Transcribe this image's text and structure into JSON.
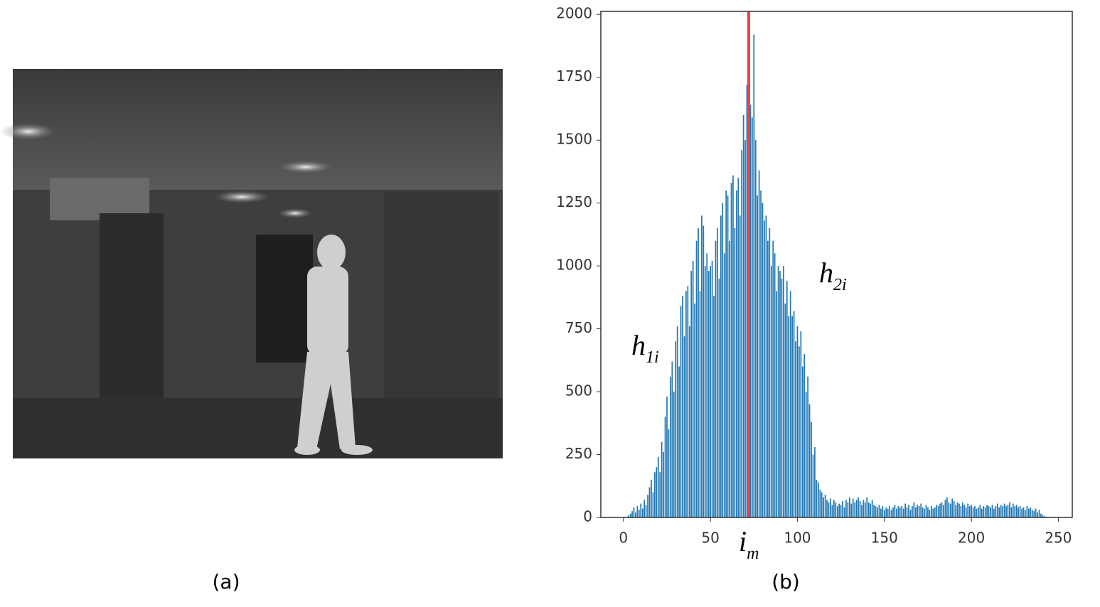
{
  "chart_data": {
    "type": "bar",
    "x": [
      0,
      1,
      2,
      3,
      4,
      5,
      6,
      7,
      8,
      9,
      10,
      11,
      12,
      13,
      14,
      15,
      16,
      17,
      18,
      19,
      20,
      21,
      22,
      23,
      24,
      25,
      26,
      27,
      28,
      29,
      30,
      31,
      32,
      33,
      34,
      35,
      36,
      37,
      38,
      39,
      40,
      41,
      42,
      43,
      44,
      45,
      46,
      47,
      48,
      49,
      50,
      51,
      52,
      53,
      54,
      55,
      56,
      57,
      58,
      59,
      60,
      61,
      62,
      63,
      64,
      65,
      66,
      67,
      68,
      69,
      70,
      71,
      72,
      73,
      74,
      75,
      76,
      77,
      78,
      79,
      80,
      81,
      82,
      83,
      84,
      85,
      86,
      87,
      88,
      89,
      90,
      91,
      92,
      93,
      94,
      95,
      96,
      97,
      98,
      99,
      100,
      101,
      102,
      103,
      104,
      105,
      106,
      107,
      108,
      109,
      110,
      111,
      112,
      113,
      114,
      115,
      116,
      117,
      118,
      119,
      120,
      121,
      122,
      123,
      124,
      125,
      126,
      127,
      128,
      129,
      130,
      131,
      132,
      133,
      134,
      135,
      136,
      137,
      138,
      139,
      140,
      141,
      142,
      143,
      144,
      145,
      146,
      147,
      148,
      149,
      150,
      151,
      152,
      153,
      154,
      155,
      156,
      157,
      158,
      159,
      160,
      161,
      162,
      163,
      164,
      165,
      166,
      167,
      168,
      169,
      170,
      171,
      172,
      173,
      174,
      175,
      176,
      177,
      178,
      179,
      180,
      181,
      182,
      183,
      184,
      185,
      186,
      187,
      188,
      189,
      190,
      191,
      192,
      193,
      194,
      195,
      196,
      197,
      198,
      199,
      200,
      201,
      202,
      203,
      204,
      205,
      206,
      207,
      208,
      209,
      210,
      211,
      212,
      213,
      214,
      215,
      216,
      217,
      218,
      219,
      220,
      221,
      222,
      223,
      224,
      225,
      226,
      227,
      228,
      229,
      230,
      231,
      232,
      233,
      234,
      235,
      236,
      237,
      238,
      239,
      240,
      241,
      242,
      243,
      244
    ],
    "values": [
      0,
      0,
      3,
      8,
      15,
      25,
      40,
      20,
      45,
      30,
      55,
      35,
      70,
      50,
      90,
      120,
      150,
      100,
      180,
      200,
      240,
      180,
      300,
      260,
      400,
      480,
      350,
      560,
      620,
      500,
      700,
      760,
      600,
      840,
      880,
      720,
      900,
      920,
      760,
      980,
      1020,
      850,
      1100,
      1150,
      900,
      1200,
      1160,
      1000,
      1050,
      980,
      1000,
      1020,
      880,
      1100,
      1150,
      950,
      1200,
      1250,
      1050,
      1300,
      1280,
      1100,
      1330,
      1360,
      1150,
      1300,
      1350,
      1200,
      1460,
      1600,
      1500,
      1720,
      750,
      1640,
      1590,
      1920,
      1500,
      1280,
      1380,
      1300,
      1250,
      1180,
      1200,
      1100,
      1150,
      1000,
      1100,
      1050,
      900,
      1000,
      980,
      950,
      1000,
      850,
      940,
      800,
      900,
      800,
      820,
      700,
      760,
      680,
      740,
      600,
      650,
      500,
      560,
      450,
      380,
      250,
      280,
      150,
      140,
      110,
      100,
      80,
      90,
      70,
      60,
      75,
      50,
      70,
      60,
      45,
      55,
      50,
      65,
      40,
      70,
      60,
      80,
      55,
      75,
      60,
      70,
      80,
      65,
      50,
      70,
      60,
      80,
      60,
      55,
      70,
      50,
      45,
      40,
      50,
      35,
      45,
      30,
      40,
      35,
      45,
      30,
      40,
      50,
      35,
      45,
      40,
      45,
      35,
      55,
      40,
      50,
      30,
      45,
      60,
      40,
      50,
      45,
      55,
      40,
      35,
      50,
      40,
      30,
      45,
      35,
      40,
      50,
      45,
      55,
      60,
      50,
      70,
      80,
      60,
      55,
      75,
      65,
      50,
      60,
      55,
      45,
      60,
      50,
      40,
      55,
      45,
      50,
      40,
      45,
      35,
      40,
      50,
      35,
      45,
      40,
      50,
      45,
      40,
      50,
      35,
      45,
      55,
      40,
      50,
      45,
      55,
      45,
      50,
      60,
      40,
      55,
      45,
      50,
      40,
      45,
      35,
      40,
      30,
      45,
      35,
      40,
      30,
      25,
      35,
      20,
      30,
      15,
      10,
      5,
      3,
      0
    ],
    "color": "#1f77b4",
    "xlim": [
      -13,
      258
    ],
    "ylim": [
      0,
      2012
    ],
    "xticks": [
      0,
      50,
      100,
      150,
      200,
      250
    ],
    "yticks": [
      0,
      250,
      500,
      750,
      1000,
      1250,
      1500,
      1750,
      2000
    ],
    "threshold": {
      "value": 72,
      "color": "#ff3b3b",
      "label": "i",
      "subscript": "m"
    },
    "annotations": [
      {
        "text": "h",
        "subscript": "1i"
      },
      {
        "text": "h",
        "subscript": "2i"
      }
    ],
    "panel_labels": [
      "(a)",
      "(b)"
    ]
  }
}
